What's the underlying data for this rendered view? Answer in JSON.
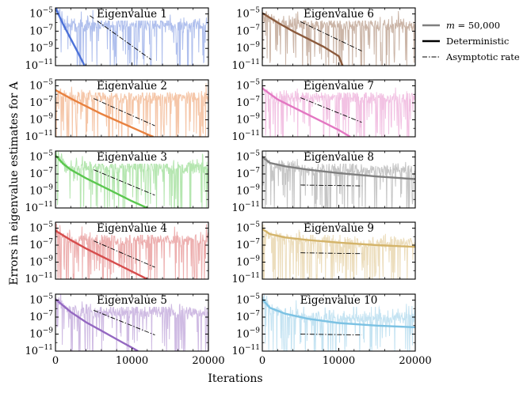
{
  "chart_data": {
    "type": "line",
    "xlabel": "Iterations",
    "ylabel": "Errors in eigenvalue estimates for A",
    "xlim": [
      0,
      20000
    ],
    "ylim_log10": [
      -11,
      -4.3
    ],
    "yscale": "log",
    "xticks": [
      {
        "value": 0,
        "label": "0"
      },
      {
        "value": 10000,
        "label": "10000"
      },
      {
        "value": 20000,
        "label": "20000"
      }
    ],
    "yticks": [
      {
        "exp": -5,
        "base": "10",
        "sup": "−5"
      },
      {
        "exp": -7,
        "base": "10",
        "sup": "−7"
      },
      {
        "exp": -9,
        "base": "10",
        "sup": "−9"
      },
      {
        "exp": -11,
        "base": "10",
        "sup": "−11"
      }
    ],
    "legend": {
      "placement": "top-right outside",
      "entries": [
        {
          "label_italic": "m",
          "label_rest": " = 50,000",
          "style": "gray-line"
        },
        {
          "label": "Deterministic",
          "style": "black-line"
        },
        {
          "label": "Asymptotic rate",
          "style": "dash-dot"
        }
      ]
    },
    "panels": [
      {
        "title": "Eigenvalue 1",
        "color": "#4d72d8",
        "deterministic": [
          [
            0,
            -4.3
          ],
          [
            1000,
            -6.2
          ],
          [
            2000,
            -7.9
          ],
          [
            3000,
            -9.6
          ],
          [
            3800,
            -11
          ]
        ],
        "noise_floor": -6.3,
        "asymptotic": [
          [
            4500,
            -5.2
          ],
          [
            12500,
            -10.3
          ]
        ]
      },
      {
        "title": "Eigenvalue 2",
        "color": "#e8813f",
        "deterministic": [
          [
            0,
            -5.5
          ],
          [
            2000,
            -6.5
          ],
          [
            4000,
            -7.4
          ],
          [
            6000,
            -8.3
          ],
          [
            8000,
            -9.1
          ],
          [
            10000,
            -9.9
          ],
          [
            12000,
            -10.7
          ],
          [
            12800,
            -11
          ]
        ],
        "noise_floor": -6.4,
        "asymptotic": [
          [
            5000,
            -6.5
          ],
          [
            13000,
            -9.7
          ]
        ]
      },
      {
        "title": "Eigenvalue 3",
        "color": "#5bc74f",
        "deterministic": [
          [
            0,
            -4.8
          ],
          [
            1000,
            -5.8
          ],
          [
            2000,
            -6.5
          ],
          [
            4000,
            -7.5
          ],
          [
            6000,
            -8.4
          ],
          [
            8000,
            -9.3
          ],
          [
            10000,
            -10.2
          ],
          [
            12000,
            -11
          ]
        ],
        "noise_floor": -6.2,
        "asymptotic": [
          [
            5000,
            -6.5
          ],
          [
            13000,
            -9.5
          ]
        ]
      },
      {
        "title": "Eigenvalue 4",
        "color": "#d64d4d",
        "deterministic": [
          [
            0,
            -5.3
          ],
          [
            2000,
            -6.4
          ],
          [
            4000,
            -7.4
          ],
          [
            6000,
            -8.3
          ],
          [
            8000,
            -9.2
          ],
          [
            10000,
            -10.1
          ],
          [
            12000,
            -11
          ]
        ],
        "noise_floor": -6.4,
        "asymptotic": [
          [
            5000,
            -6.5
          ],
          [
            13000,
            -9.6
          ]
        ]
      },
      {
        "title": "Eigenvalue 5",
        "color": "#9468c1",
        "deterministic": [
          [
            0,
            -4.9
          ],
          [
            2000,
            -6.4
          ],
          [
            4000,
            -7.6
          ],
          [
            6000,
            -8.6
          ],
          [
            8000,
            -9.6
          ],
          [
            10000,
            -10.6
          ],
          [
            10800,
            -11
          ]
        ],
        "noise_floor": -6.4,
        "asymptotic": [
          [
            5000,
            -6.2
          ],
          [
            13000,
            -9.1
          ]
        ]
      },
      {
        "title": "Eigenvalue 6",
        "color": "#8b5a3c",
        "deterministic": [
          [
            0,
            -4.9
          ],
          [
            2000,
            -6.0
          ],
          [
            4000,
            -7.0
          ],
          [
            6000,
            -7.9
          ],
          [
            8000,
            -8.8
          ],
          [
            10000,
            -9.9
          ],
          [
            10500,
            -11
          ]
        ],
        "noise_floor": -6.3,
        "asymptotic": [
          [
            5000,
            -5.9
          ],
          [
            13000,
            -9.3
          ]
        ]
      },
      {
        "title": "Eigenvalue 7",
        "color": "#e377c2",
        "deterministic": [
          [
            0,
            -5.3
          ],
          [
            2000,
            -6.6
          ],
          [
            4000,
            -7.5
          ],
          [
            6000,
            -8.4
          ],
          [
            8000,
            -9.3
          ],
          [
            10000,
            -10.2
          ],
          [
            11500,
            -11
          ]
        ],
        "noise_floor": -6.4,
        "asymptotic": [
          [
            5000,
            -6.4
          ],
          [
            13000,
            -9.3
          ]
        ]
      },
      {
        "title": "Eigenvalue 8",
        "color": "#7f7f7f",
        "deterministic": [
          [
            0,
            -5.0
          ],
          [
            1000,
            -5.7
          ],
          [
            3000,
            -6.1
          ],
          [
            6000,
            -6.5
          ],
          [
            10000,
            -6.9
          ],
          [
            15000,
            -7.3
          ],
          [
            20000,
            -7.6
          ]
        ],
        "noise_floor": -6.5,
        "asymptotic": [
          [
            5000,
            -8.3
          ],
          [
            13000,
            -8.4
          ]
        ]
      },
      {
        "title": "Eigenvalue 9",
        "color": "#d4b46a",
        "deterministic": [
          [
            0,
            -5.1
          ],
          [
            1000,
            -5.7
          ],
          [
            3000,
            -6.1
          ],
          [
            6000,
            -6.4
          ],
          [
            10000,
            -6.7
          ],
          [
            15000,
            -7.0
          ],
          [
            20000,
            -7.2
          ]
        ],
        "noise_floor": -6.7,
        "asymptotic": [
          [
            5000,
            -7.9
          ],
          [
            13000,
            -8.0
          ]
        ]
      },
      {
        "title": "Eigenvalue 10",
        "color": "#7cc2e3",
        "deterministic": [
          [
            0,
            -4.9
          ],
          [
            1000,
            -5.9
          ],
          [
            3000,
            -6.6
          ],
          [
            6000,
            -7.2
          ],
          [
            10000,
            -7.7
          ],
          [
            15000,
            -8.0
          ],
          [
            20000,
            -8.2
          ]
        ],
        "noise_floor": -7.1,
        "asymptotic": [
          [
            5000,
            -9.0
          ],
          [
            13000,
            -9.1
          ]
        ]
      }
    ]
  }
}
